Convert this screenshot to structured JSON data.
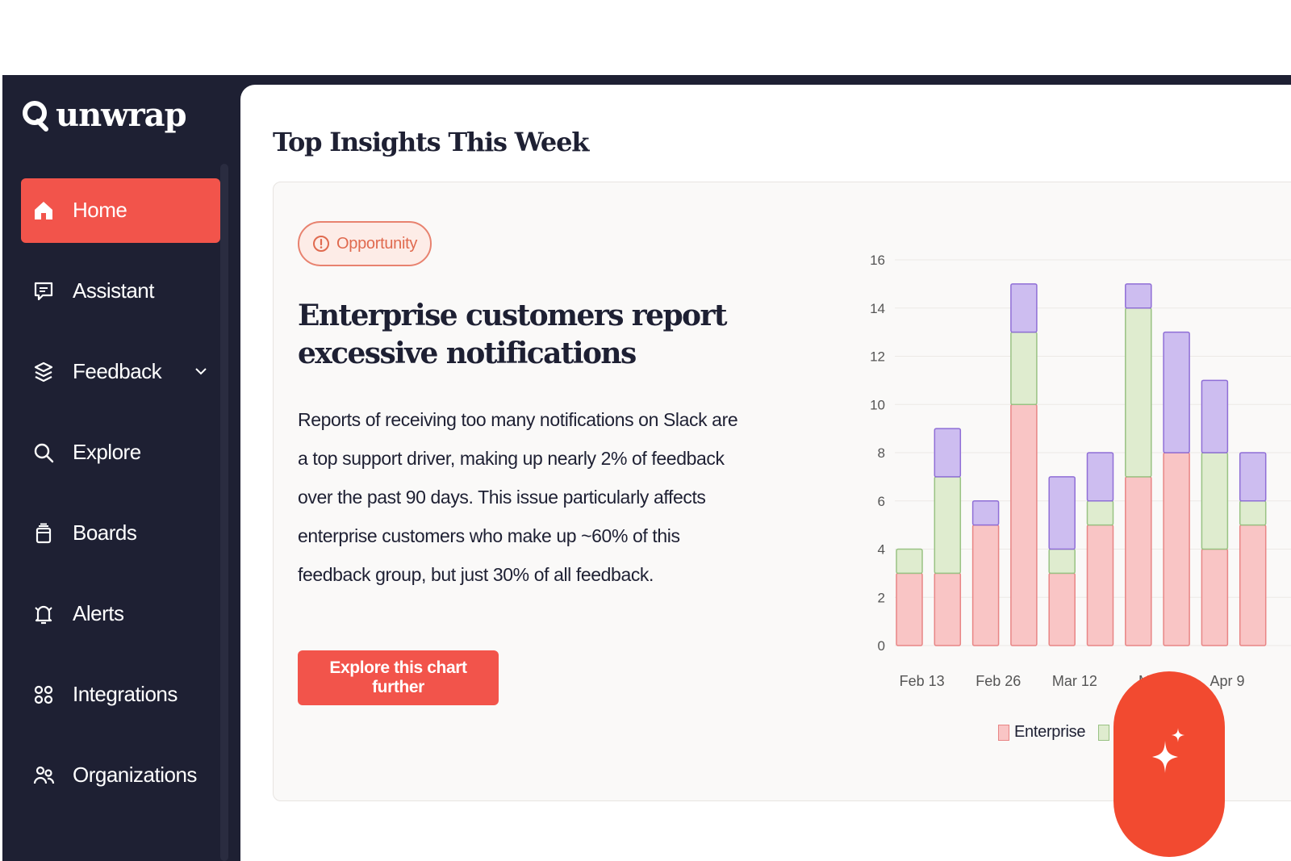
{
  "app": {
    "brand": "unwrap"
  },
  "sidebar": {
    "items": [
      {
        "key": "home",
        "label": "Home",
        "icon": "home-icon",
        "active": true
      },
      {
        "key": "assistant",
        "label": "Assistant",
        "icon": "chat-icon"
      },
      {
        "key": "feedback",
        "label": "Feedback",
        "icon": "layers-icon",
        "has_chevron": true
      },
      {
        "key": "explore",
        "label": "Explore",
        "icon": "search-icon"
      },
      {
        "key": "boards",
        "label": "Boards",
        "icon": "boards-icon"
      },
      {
        "key": "alerts",
        "label": "Alerts",
        "icon": "bell-icon"
      },
      {
        "key": "integrations",
        "label": "Integrations",
        "icon": "grid-icon"
      },
      {
        "key": "organizations",
        "label": "Organizations",
        "icon": "users-icon"
      }
    ]
  },
  "main": {
    "title": "Top Insights This Week",
    "insight": {
      "badge": "Opportunity",
      "title": "Enterprise customers report excessive notifications",
      "body": "Reports of receiving too many notifications on Slack are a top support driver, making up nearly 2% of feedback over the past 90 days. This issue particularly affects enterprise customers who make up ~60% of this feedback group, but just 30% of all feedback.",
      "cta": "Explore this chart further"
    }
  },
  "colors": {
    "sidebar_bg": "#1e2033",
    "accent": "#f2544b",
    "fab": "#f24a30",
    "enterprise": "#f9c5c5",
    "series2": "#dfeccf",
    "series3": "#cdbdf0"
  },
  "chart_data": {
    "type": "bar",
    "stacked": true,
    "ylim": [
      0,
      16
    ],
    "yticks": [
      0,
      2,
      4,
      6,
      8,
      10,
      12,
      14,
      16
    ],
    "x_tick_labels": [
      "Feb 13",
      "Feb 26",
      "Mar 12",
      "Mar",
      "Apr 9"
    ],
    "legend_position": "bottom",
    "series": [
      {
        "name": "Enterprise",
        "values": [
          3,
          3,
          5,
          10,
          3,
          5,
          7,
          8,
          4,
          5
        ],
        "fill": "#f9c5c5",
        "stroke": "#e88585"
      },
      {
        "values": [
          1,
          4,
          0,
          3,
          1,
          1,
          7,
          0,
          4,
          1
        ],
        "fill": "#dfeccf",
        "stroke": "#99c283"
      },
      {
        "values": [
          0,
          2,
          1,
          2,
          3,
          2,
          1,
          5,
          3,
          2
        ],
        "fill": "#cdbdf0",
        "stroke": "#8f6ed6"
      }
    ]
  }
}
